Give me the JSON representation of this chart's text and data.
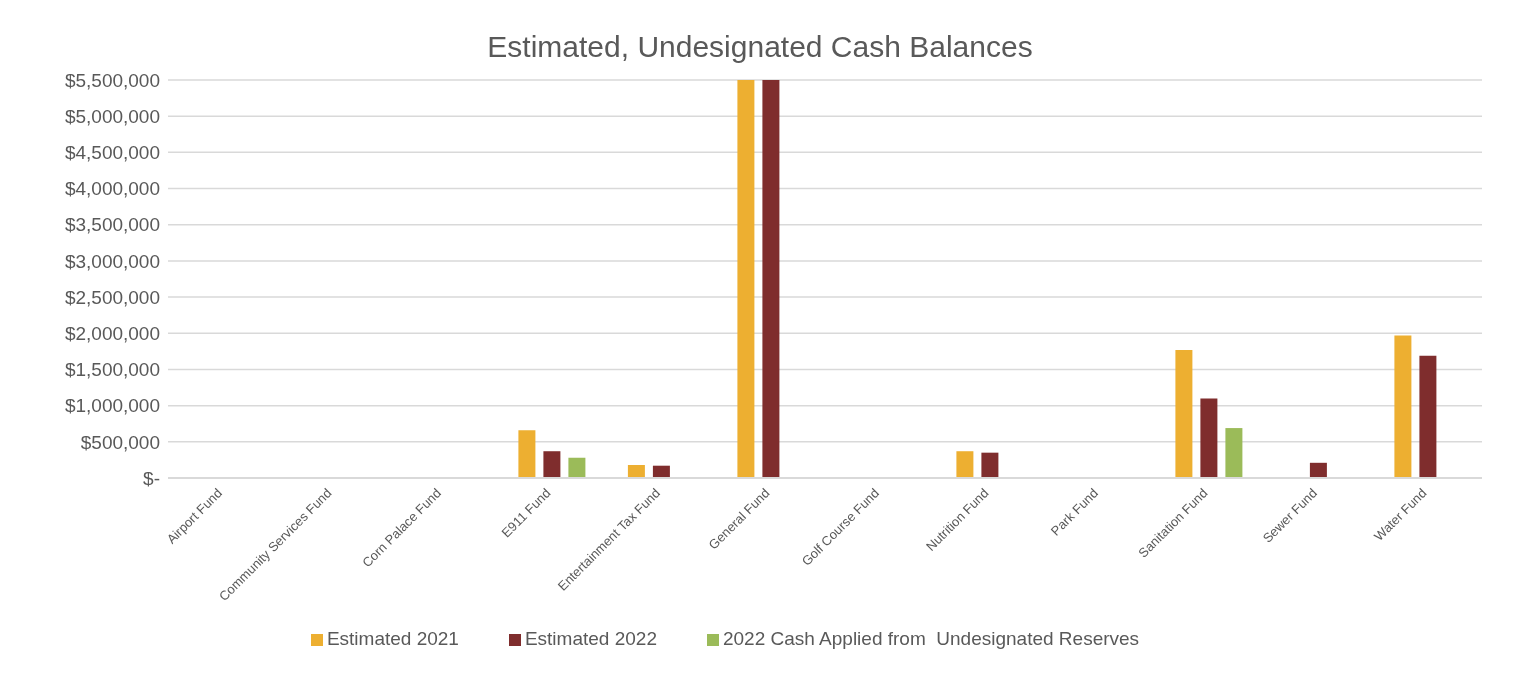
{
  "chart_data": {
    "type": "bar",
    "title": "Estimated, Undesignated Cash Balances",
    "categories": [
      "Airport Fund",
      "Community Services Fund",
      "Corn Palace Fund",
      "E911 Fund",
      "Entertainment Tax Fund",
      "General Fund",
      "Golf Course Fund",
      "Nutrition Fund",
      "Park Fund",
      "Sanitation Fund",
      "Sewer Fund",
      "Water Fund"
    ],
    "series": [
      {
        "name": "Estimated 2021",
        "color": "#edaf31",
        "values": [
          null,
          null,
          null,
          660000,
          180000,
          5500000,
          null,
          370000,
          null,
          1770000,
          null,
          1970000
        ]
      },
      {
        "name": "Estimated 2022",
        "color": "#7f2d2d",
        "values": [
          null,
          null,
          null,
          370000,
          170000,
          5500000,
          null,
          350000,
          null,
          1100000,
          210000,
          1690000
        ]
      },
      {
        "name": "2022 Cash Applied from  Undesignated Reserves",
        "color": "#9bbb59",
        "values": [
          null,
          null,
          null,
          280000,
          null,
          null,
          null,
          null,
          null,
          690000,
          null,
          null
        ]
      }
    ],
    "ylim": [
      0,
      5500000
    ],
    "yticks": [
      {
        "value": 0,
        "label": "$-"
      },
      {
        "value": 500000,
        "label": "$500,000"
      },
      {
        "value": 1000000,
        "label": "$1,000,000"
      },
      {
        "value": 1500000,
        "label": "$1,500,000"
      },
      {
        "value": 2000000,
        "label": "$2,000,000"
      },
      {
        "value": 2500000,
        "label": "$2,500,000"
      },
      {
        "value": 3000000,
        "label": "$3,000,000"
      },
      {
        "value": 3500000,
        "label": "$3,500,000"
      },
      {
        "value": 4000000,
        "label": "$4,000,000"
      },
      {
        "value": 4500000,
        "label": "$4,500,000"
      },
      {
        "value": 5000000,
        "label": "$5,000,000"
      },
      {
        "value": 5500000,
        "label": "$5,500,000"
      }
    ],
    "grid": "y",
    "legend": "bottom"
  }
}
